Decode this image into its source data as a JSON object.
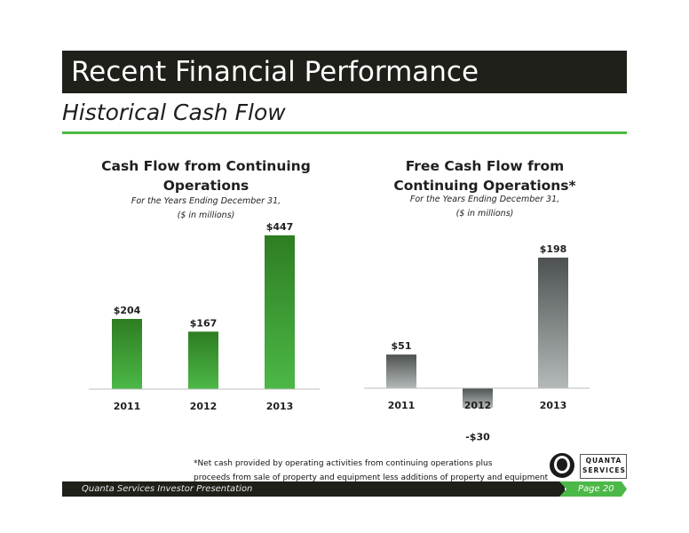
{
  "header": {
    "title": "Recent Financial Performance",
    "subtitle": "Historical Cash Flow"
  },
  "colors": {
    "title_bar": "#1e2019",
    "accent_green": "#4cb847",
    "bar_green_top": "#2e7d22",
    "bar_green_bottom": "#4cb847",
    "bar_gray_top": "#4d5151",
    "bar_gray_bottom": "#b4bab9"
  },
  "chart_data": [
    {
      "type": "bar",
      "title_line1": "Cash Flow from Continuing",
      "title_line2": "Operations",
      "subtitle_line1": "For the Years Ending December 31,",
      "subtitle_line2": "($ in millions)",
      "categories": [
        "2011",
        "2012",
        "2013"
      ],
      "values": [
        204,
        167,
        447
      ],
      "data_labels": [
        "$204",
        "$167",
        "$447"
      ],
      "ylim": [
        0,
        447
      ],
      "grid": false,
      "color": "green"
    },
    {
      "type": "bar",
      "title_line1": "Free Cash Flow from",
      "title_line2": "Continuing Operations*",
      "subtitle_line1": "For the Years Ending December 31,",
      "subtitle_line2": "($ in millions)",
      "categories": [
        "2011",
        "2012",
        "2013"
      ],
      "values": [
        51,
        -30,
        198
      ],
      "data_labels": [
        "$51",
        "-$30",
        "$198"
      ],
      "ylim": [
        -30,
        198
      ],
      "grid": false,
      "color": "gray"
    }
  ],
  "footnote": {
    "line1": "*Net cash provided by operating activities from continuing operations plus",
    "line2": "proceeds from sale of property and equipment less additions of property and equipment"
  },
  "logo": {
    "word1": "QUANTA",
    "word2": "SERVICES"
  },
  "footer": {
    "text": "Quanta Services Investor Presentation",
    "page": "Page 20"
  }
}
